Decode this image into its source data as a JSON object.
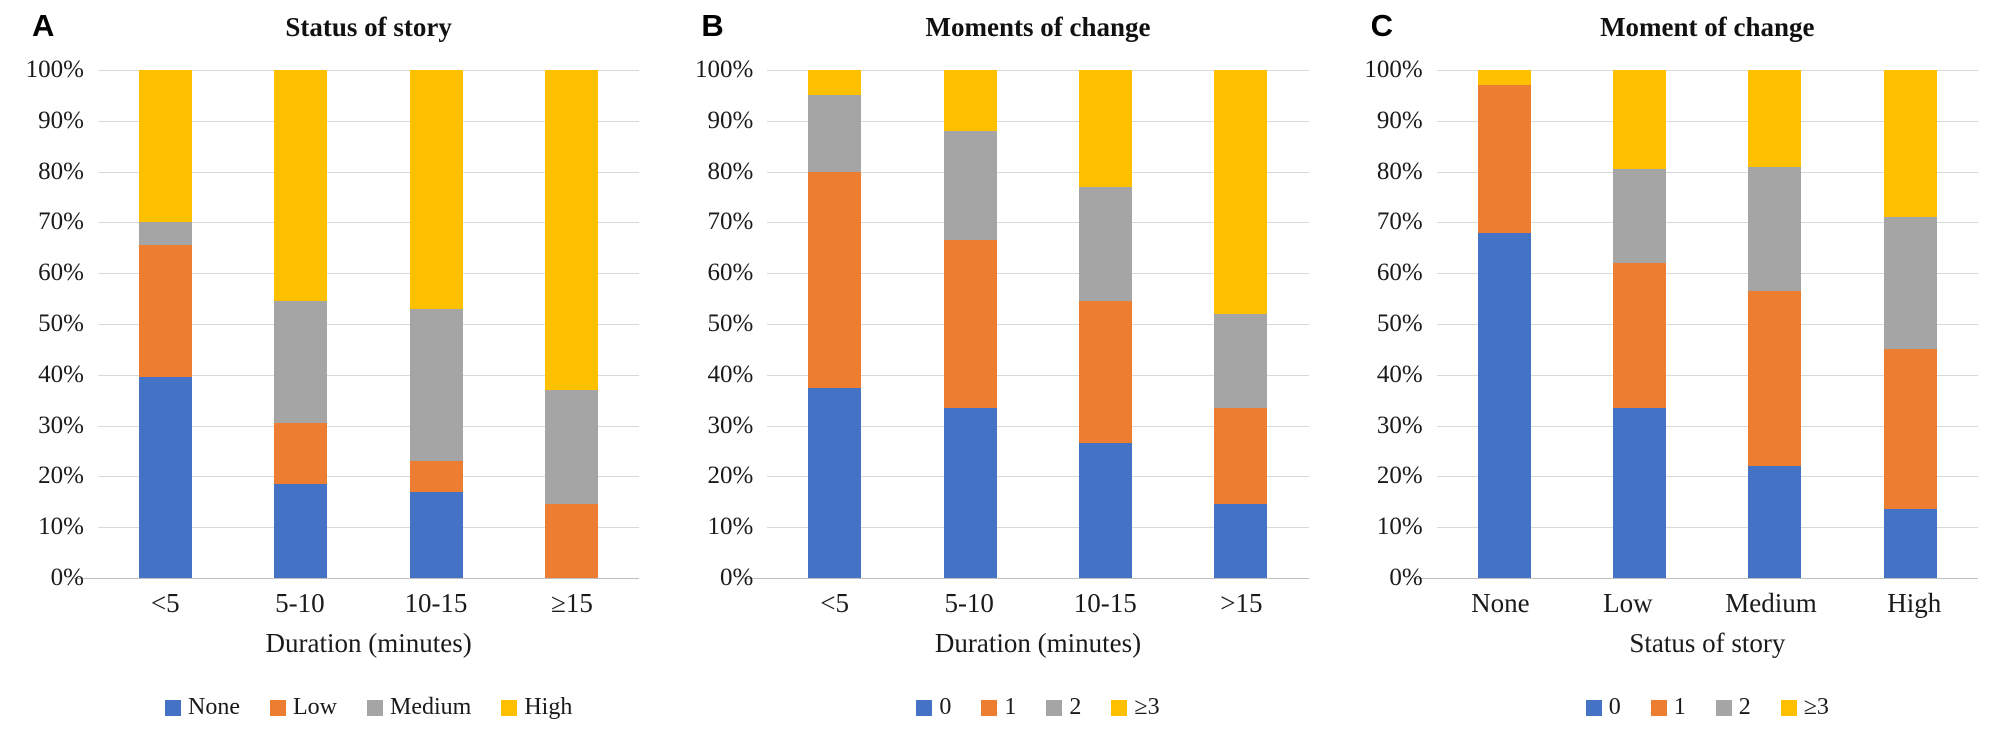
{
  "page": {
    "background": "#ffffff"
  },
  "colors": {
    "blue": "#4472C4",
    "orange": "#ED7D31",
    "gray": "#A5A5A5",
    "yellow": "#FFC000",
    "gridline": "#D9D9D9",
    "axis_line": "#BFBFBF"
  },
  "chart_data": [
    {
      "panel": "A",
      "type": "bar",
      "stacked": true,
      "title": "Status of story",
      "xlabel": "Duration (minutes)",
      "categories": [
        "<5",
        "5-10",
        "10-15",
        "≥15"
      ],
      "y_ticks": [
        "100%",
        "90%",
        "80%",
        "70%",
        "60%",
        "50%",
        "40%",
        "30%",
        "20%",
        "10%",
        "0%"
      ],
      "ylim": [
        0,
        100
      ],
      "grid": true,
      "legend_position": "bottom",
      "series": [
        {
          "name": "None",
          "color_key": "blue",
          "values": [
            39.5,
            18.5,
            17,
            0
          ]
        },
        {
          "name": "Low",
          "color_key": "orange",
          "values": [
            26,
            12,
            6,
            14.5
          ]
        },
        {
          "name": "Medium",
          "color_key": "gray",
          "values": [
            4.5,
            24,
            30,
            22.5
          ]
        },
        {
          "name": "High",
          "color_key": "yellow",
          "values": [
            30,
            45.5,
            47,
            63
          ]
        }
      ]
    },
    {
      "panel": "B",
      "type": "bar",
      "stacked": true,
      "title": "Moments of change",
      "xlabel": "Duration (minutes)",
      "categories": [
        "<5",
        "5-10",
        "10-15",
        ">15"
      ],
      "y_ticks": [
        "100%",
        "90%",
        "80%",
        "70%",
        "60%",
        "50%",
        "40%",
        "30%",
        "20%",
        "10%",
        "0%"
      ],
      "ylim": [
        0,
        100
      ],
      "grid": true,
      "legend_position": "bottom",
      "series": [
        {
          "name": "0",
          "color_key": "blue",
          "values": [
            37.5,
            33.5,
            26.5,
            14.5
          ]
        },
        {
          "name": "1",
          "color_key": "orange",
          "values": [
            42.5,
            33,
            28,
            19
          ]
        },
        {
          "name": "2",
          "color_key": "gray",
          "values": [
            15,
            21.5,
            22.5,
            18.5
          ]
        },
        {
          "name": "≥3",
          "color_key": "yellow",
          "values": [
            5,
            12,
            23,
            48
          ]
        }
      ]
    },
    {
      "panel": "C",
      "type": "bar",
      "stacked": true,
      "title": "Moment of change",
      "xlabel": "Status of story",
      "categories": [
        "None",
        "Low",
        "Medium",
        "High"
      ],
      "y_ticks": [
        "100%",
        "90%",
        "80%",
        "70%",
        "60%",
        "50%",
        "40%",
        "30%",
        "20%",
        "10%",
        "0%"
      ],
      "ylim": [
        0,
        100
      ],
      "grid": true,
      "legend_position": "bottom",
      "series": [
        {
          "name": "0",
          "color_key": "blue",
          "values": [
            68,
            33.5,
            22,
            13.5
          ]
        },
        {
          "name": "1",
          "color_key": "orange",
          "values": [
            29,
            28.5,
            34.5,
            31.5
          ]
        },
        {
          "name": "2",
          "color_key": "gray",
          "values": [
            0,
            18.5,
            24.5,
            26
          ]
        },
        {
          "name": "≥3",
          "color_key": "yellow",
          "values": [
            3,
            19.5,
            19,
            29
          ]
        }
      ]
    }
  ]
}
